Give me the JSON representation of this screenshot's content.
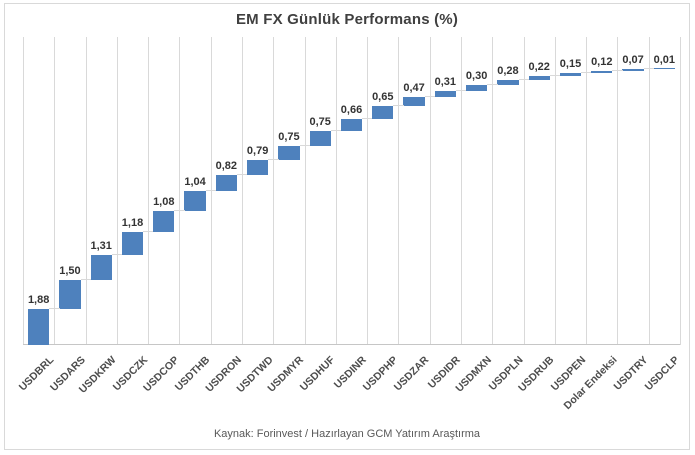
{
  "chart_data": {
    "type": "bar",
    "subtype": "cumulative-waterfall",
    "title": "EM FX Günlük Performans (%)",
    "categories": [
      "USDBRL",
      "USDARS",
      "USDKRW",
      "USDCZK",
      "USDCOP",
      "USDTHB",
      "USDRON",
      "USDTWD",
      "USDMYR",
      "USDHUF",
      "USDINR",
      "USDPHP",
      "USDZAR",
      "USDIDR",
      "USDMXN",
      "USDPLN",
      "USDRUB",
      "USDPEN",
      "Dolar Endeksi",
      "USDTRY",
      "USDCLP"
    ],
    "values": [
      1.88,
      1.5,
      1.31,
      1.18,
      1.08,
      1.04,
      0.82,
      0.79,
      0.75,
      0.75,
      0.66,
      0.65,
      0.47,
      0.31,
      0.3,
      0.28,
      0.22,
      0.15,
      0.12,
      0.07,
      0.01
    ],
    "value_labels": [
      "1,88",
      "1,50",
      "1,31",
      "1,18",
      "1,08",
      "1,04",
      "0,82",
      "0,79",
      "0,75",
      "0,75",
      "0,66",
      "0,65",
      "0,47",
      "0,31",
      "0,30",
      "0,28",
      "0,22",
      "0,15",
      "0,12",
      "0,07",
      "0,01"
    ],
    "xlabel": "",
    "ylabel": "",
    "ylim": [
      0,
      16
    ],
    "grid": "vertical-only",
    "legend": "none",
    "colors": {
      "bar": "#4E81BD",
      "gridline": "#D9D9D9",
      "axis_line": "#C6C6C6",
      "value_label": "#333333",
      "category_label": "#4D4D4D",
      "title": "#404040",
      "caption": "#595959",
      "border": "#D9D9D9"
    }
  },
  "footer": {
    "caption": "Kaynak: Forinvest / Hazırlayan GCM Yatırım Araştırma"
  }
}
